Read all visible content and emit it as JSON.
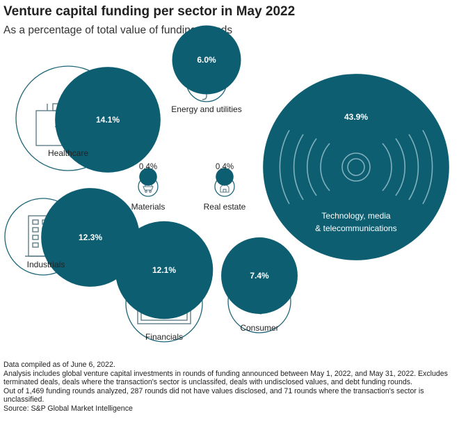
{
  "title": "Venture capital funding per sector in May 2022",
  "subtitle": "As a percentage of total value of funding rounds",
  "colors": {
    "accent": "#0e5e72",
    "outline": "#1e6678",
    "icon": "#5f7d87",
    "text": "#222222"
  },
  "chart_data": {
    "type": "bubble",
    "title": "Venture capital funding per sector in May 2022",
    "subtitle": "As a percentage of total value of funding rounds",
    "unit": "%",
    "series": [
      {
        "name": "Technology, media & telecommunications",
        "value": 43.9,
        "label": "43.9%",
        "icon": "wireless-signal-icon"
      },
      {
        "name": "Healthcare",
        "value": 14.1,
        "label": "14.1%",
        "icon": "medical-kit-icon"
      },
      {
        "name": "Industrials",
        "value": 12.3,
        "label": "12.3%",
        "icon": "office-building-icon"
      },
      {
        "name": "Financials",
        "value": 12.1,
        "label": "12.1%",
        "icon": "banknote-icon"
      },
      {
        "name": "Consumer",
        "value": 7.4,
        "label": "7.4%",
        "icon": "handshake-icon"
      },
      {
        "name": "Energy and utilities",
        "value": 6.0,
        "label": "6.0%",
        "icon": "power-plug-icon"
      },
      {
        "name": "Materials",
        "value": 0.4,
        "label": "0.4%",
        "icon": "mine-cart-icon"
      },
      {
        "name": "Real estate",
        "value": 0.4,
        "label": "0.4%",
        "icon": "house-icon"
      }
    ]
  },
  "notes": [
    "Data compiled as of June 6, 2022.",
    "Analysis includes global venture capital investments in rounds of funding announced between May 1, 2022, and May 31, 2022. Excludes terminated deals, deals where the transaction's sector is unclassifed, deals with undisclosed values, and debt funding rounds.",
    "Out of 1,469 funding rounds analyzed, 287 rounds did not have values disclosed, and 71 rounds where the transaction's sector is unclassified.",
    "Source: S&P Global Market Intelligence"
  ]
}
